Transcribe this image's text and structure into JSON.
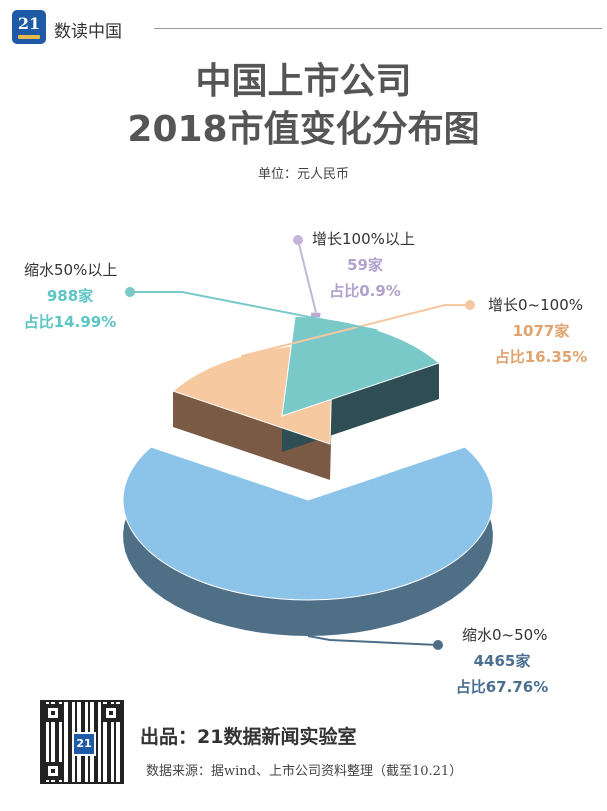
{
  "brand": {
    "logo_text": "21",
    "name": "数读中国"
  },
  "header": {
    "title_line1": "中国上市公司",
    "title_line2": "2018市值变化分布图",
    "unit": "单位：元人民币"
  },
  "footer": {
    "credit": "出品：21数据新闻实验室",
    "source": "数据来源：据wind、上市公司资料整理（截至10.21）",
    "qr_logo": "21"
  },
  "colors": {
    "shrink_0_50": "#8cc3e8",
    "growth_0_100": "#f7c9a0",
    "growth_100_plus": "#b9a9d2",
    "shrink_50_plus": "#79c9c8"
  },
  "chart_data": {
    "type": "pie",
    "title": "中国上市公司 2018市值变化分布图",
    "unit": "元人民币",
    "slices": [
      {
        "label": "缩水0~50%",
        "count": 4465,
        "count_text": "4465家",
        "share_text": "占比67.76%",
        "percent": 67.76
      },
      {
        "label": "增长0~100%",
        "count": 1077,
        "count_text": "1077家",
        "share_text": "占比16.35%",
        "percent": 16.35
      },
      {
        "label": "增长100%以上",
        "count": 59,
        "count_text": "59家",
        "share_text": "占比0.9%",
        "percent": 0.9
      },
      {
        "label": "缩水50%以上",
        "count": 988,
        "count_text": "988家",
        "share_text": "占比14.99%",
        "percent": 14.99
      }
    ]
  }
}
